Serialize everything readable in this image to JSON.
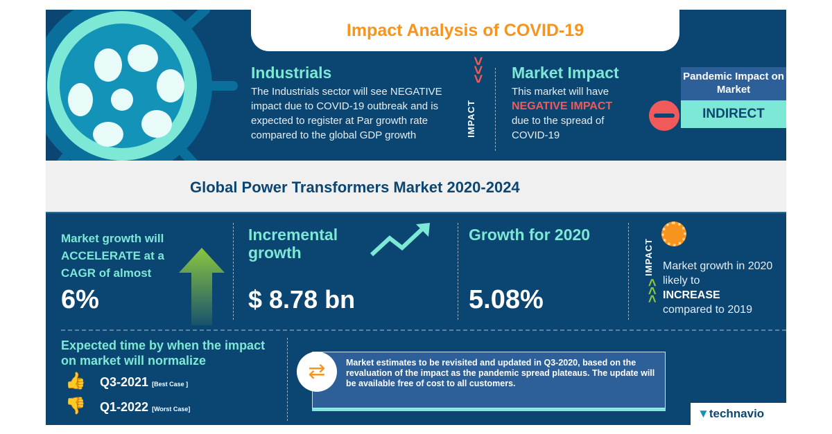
{
  "header": {
    "title": "Impact Analysis of COVID-19"
  },
  "industrials": {
    "title": "Industrials",
    "text": "The Industrials sector will see NEGATIVE impact due to COVID-19 outbreak and is expected to register at Par growth rate compared to the global GDP growth"
  },
  "impact_label": "IMPACT",
  "market_impact": {
    "title": "Market Impact",
    "line1": "This market will have",
    "highlight": "NEGATIVE IMPACT",
    "line2": "due to the spread of COVID-19"
  },
  "pandemic": {
    "title": "Pandemic Impact on Market",
    "value": "INDIRECT"
  },
  "market_title": "Global Power Transformers Market 2020-2024",
  "growth": {
    "text": "Market growth will ACCELERATE at a CAGR of almost",
    "value": "6%"
  },
  "incremental": {
    "title": "Incremental growth",
    "value": "$ 8.78 bn"
  },
  "growth2020": {
    "title": "Growth for 2020",
    "value": "5.08%"
  },
  "yoy": {
    "label": "IMPACT",
    "line1": "Market growth in 2020 likely to",
    "highlight": "INCREASE",
    "line2": "compared to 2019"
  },
  "normalize": {
    "title": "Expected time by when the impact on market will normalize",
    "best": "Q3-2021",
    "best_tag": "[Best Case ]",
    "worst": "Q1-2022",
    "worst_tag": "[Worst Case]"
  },
  "note": "Market estimates to be revisited and updated in Q3-2020, based on the revaluation of the impact as the pandemic spread plateaus. The update will be available free of cost to all customers.",
  "brand": "technavio",
  "colors": {
    "navy": "#0b4672",
    "teal": "#7ee8d6",
    "orange": "#f7941d",
    "red": "#f05a5a",
    "green": "#8cc63f"
  }
}
